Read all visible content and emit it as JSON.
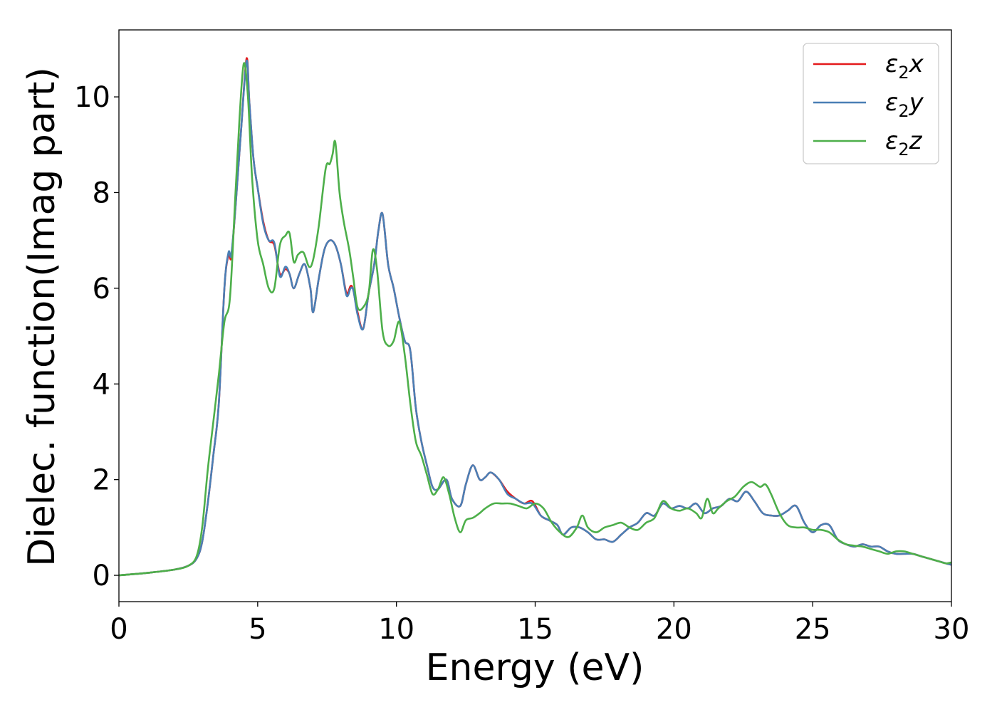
{
  "chart_data": {
    "type": "line",
    "xlabel": "Energy (eV)",
    "ylabel": "Dielec. function(Imag part)",
    "xlim": [
      0,
      30
    ],
    "ylim": [
      -0.55,
      11.4
    ],
    "xticks": [
      0,
      5,
      10,
      15,
      20,
      25,
      30
    ],
    "yticks": [
      0,
      2,
      4,
      6,
      8,
      10
    ],
    "grid": false,
    "legend_position": "top-right",
    "series": [
      {
        "name": "ε2x",
        "legend_main": "ε",
        "legend_sub": "2",
        "legend_suffix": "x",
        "color": "#e41a1c",
        "x": [
          0,
          1,
          2,
          2.5,
          2.8,
          3.0,
          3.2,
          3.4,
          3.6,
          3.8,
          3.95,
          4.05,
          4.2,
          4.4,
          4.6,
          4.7,
          4.85,
          5.0,
          5.2,
          5.4,
          5.6,
          5.8,
          6.0,
          6.15,
          6.3,
          6.5,
          6.7,
          6.9,
          7.0,
          7.2,
          7.4,
          7.6,
          7.8,
          8.0,
          8.2,
          8.35,
          8.45,
          8.6,
          8.8,
          9.0,
          9.2,
          9.35,
          9.5,
          9.7,
          9.9,
          10.1,
          10.3,
          10.5,
          10.7,
          10.9,
          11.1,
          11.3,
          11.5,
          11.8,
          12.0,
          12.3,
          12.5,
          12.75,
          13.0,
          13.2,
          13.4,
          13.7,
          14.0,
          14.3,
          14.6,
          14.9,
          15.2,
          15.5,
          15.8,
          16.0,
          16.3,
          16.6,
          16.9,
          17.2,
          17.5,
          17.8,
          18.1,
          18.4,
          18.7,
          19.0,
          19.3,
          19.6,
          19.9,
          20.2,
          20.5,
          20.8,
          21.1,
          21.4,
          21.7,
          22.0,
          22.3,
          22.6,
          22.9,
          23.2,
          23.5,
          23.8,
          24.1,
          24.4,
          24.7,
          25.0,
          25.3,
          25.6,
          25.9,
          26.2,
          26.5,
          26.8,
          27.1,
          27.4,
          27.7,
          28.0,
          28.3,
          28.6,
          28.9,
          29.2,
          29.5,
          29.8,
          30.0
        ],
        "y": [
          0.0,
          0.05,
          0.12,
          0.2,
          0.35,
          0.7,
          1.5,
          2.5,
          3.6,
          6.0,
          6.7,
          6.65,
          7.7,
          9.3,
          10.8,
          9.9,
          8.7,
          8.1,
          7.4,
          7.0,
          6.9,
          6.3,
          6.4,
          6.3,
          6.0,
          6.3,
          6.5,
          6.0,
          5.5,
          6.2,
          6.8,
          7.0,
          6.9,
          6.5,
          5.9,
          6.05,
          5.95,
          5.5,
          5.15,
          5.9,
          6.5,
          7.2,
          7.55,
          6.5,
          6.0,
          5.4,
          4.9,
          4.7,
          3.5,
          2.8,
          2.3,
          1.85,
          1.8,
          2.0,
          1.6,
          1.45,
          1.9,
          2.3,
          2.0,
          2.05,
          2.15,
          2.0,
          1.75,
          1.6,
          1.5,
          1.55,
          1.25,
          1.15,
          1.05,
          0.85,
          1.0,
          1.0,
          0.9,
          0.75,
          0.75,
          0.7,
          0.85,
          1.0,
          1.1,
          1.3,
          1.25,
          1.5,
          1.4,
          1.45,
          1.4,
          1.5,
          1.3,
          1.4,
          1.45,
          1.6,
          1.55,
          1.75,
          1.55,
          1.3,
          1.25,
          1.25,
          1.35,
          1.45,
          1.1,
          0.9,
          1.05,
          1.05,
          0.75,
          0.65,
          0.6,
          0.65,
          0.6,
          0.6,
          0.5,
          0.45,
          0.45,
          0.45,
          0.4,
          0.35,
          0.3,
          0.25,
          0.22
        ]
      },
      {
        "name": "ε2y",
        "legend_main": "ε",
        "legend_sub": "2",
        "legend_suffix": "y",
        "color": "#4a7fb5",
        "x": [
          0,
          1,
          2,
          2.5,
          2.8,
          3.0,
          3.2,
          3.4,
          3.6,
          3.8,
          3.95,
          4.05,
          4.2,
          4.4,
          4.6,
          4.7,
          4.85,
          5.0,
          5.2,
          5.4,
          5.6,
          5.8,
          6.0,
          6.15,
          6.3,
          6.5,
          6.7,
          6.9,
          7.0,
          7.2,
          7.4,
          7.6,
          7.8,
          8.0,
          8.2,
          8.35,
          8.45,
          8.6,
          8.8,
          9.0,
          9.2,
          9.35,
          9.5,
          9.7,
          9.9,
          10.1,
          10.3,
          10.5,
          10.7,
          10.9,
          11.1,
          11.3,
          11.5,
          11.8,
          12.0,
          12.3,
          12.5,
          12.75,
          13.0,
          13.2,
          13.4,
          13.7,
          14.0,
          14.3,
          14.6,
          14.9,
          15.2,
          15.5,
          15.8,
          16.0,
          16.3,
          16.6,
          16.9,
          17.2,
          17.5,
          17.8,
          18.1,
          18.4,
          18.7,
          19.0,
          19.3,
          19.6,
          19.9,
          20.2,
          20.5,
          20.8,
          21.1,
          21.4,
          21.7,
          22.0,
          22.3,
          22.6,
          22.9,
          23.2,
          23.5,
          23.8,
          24.1,
          24.4,
          24.7,
          25.0,
          25.3,
          25.6,
          25.9,
          26.2,
          26.5,
          26.8,
          27.1,
          27.4,
          27.7,
          28.0,
          28.3,
          28.6,
          28.9,
          29.2,
          29.5,
          29.8,
          30.0
        ],
        "y": [
          0.0,
          0.05,
          0.12,
          0.2,
          0.35,
          0.7,
          1.5,
          2.5,
          3.6,
          6.0,
          6.75,
          6.7,
          7.7,
          9.3,
          10.75,
          9.9,
          8.7,
          8.1,
          7.35,
          7.0,
          6.95,
          6.25,
          6.45,
          6.3,
          6.0,
          6.3,
          6.5,
          6.0,
          5.5,
          6.2,
          6.8,
          7.0,
          6.9,
          6.5,
          5.85,
          6.0,
          5.95,
          5.45,
          5.15,
          5.9,
          6.5,
          7.2,
          7.55,
          6.5,
          6.0,
          5.4,
          4.9,
          4.7,
          3.5,
          2.8,
          2.3,
          1.85,
          1.8,
          2.0,
          1.6,
          1.45,
          1.9,
          2.3,
          2.0,
          2.05,
          2.15,
          2.0,
          1.7,
          1.6,
          1.5,
          1.5,
          1.25,
          1.15,
          1.05,
          0.85,
          1.0,
          1.0,
          0.9,
          0.75,
          0.75,
          0.7,
          0.85,
          1.0,
          1.1,
          1.3,
          1.25,
          1.5,
          1.4,
          1.45,
          1.4,
          1.5,
          1.3,
          1.4,
          1.45,
          1.6,
          1.55,
          1.75,
          1.55,
          1.3,
          1.25,
          1.25,
          1.35,
          1.45,
          1.1,
          0.9,
          1.05,
          1.05,
          0.75,
          0.65,
          0.6,
          0.65,
          0.6,
          0.6,
          0.5,
          0.45,
          0.45,
          0.45,
          0.4,
          0.35,
          0.3,
          0.25,
          0.22
        ]
      },
      {
        "name": "ε2z",
        "legend_main": "ε",
        "legend_sub": "2",
        "legend_suffix": "z",
        "color": "#4daf4a",
        "x": [
          0,
          1,
          2,
          2.5,
          2.8,
          3.0,
          3.2,
          3.4,
          3.6,
          3.8,
          4.0,
          4.2,
          4.35,
          4.5,
          4.65,
          4.8,
          5.0,
          5.2,
          5.4,
          5.6,
          5.8,
          6.0,
          6.15,
          6.3,
          6.45,
          6.65,
          6.85,
          7.0,
          7.2,
          7.45,
          7.6,
          7.7,
          7.8,
          7.95,
          8.1,
          8.3,
          8.45,
          8.6,
          8.8,
          9.0,
          9.15,
          9.3,
          9.5,
          9.7,
          9.9,
          10.1,
          10.3,
          10.5,
          10.7,
          10.9,
          11.1,
          11.3,
          11.5,
          11.7,
          11.9,
          12.1,
          12.3,
          12.5,
          12.75,
          13.0,
          13.2,
          13.5,
          13.8,
          14.1,
          14.4,
          14.7,
          15.0,
          15.3,
          15.6,
          15.9,
          16.2,
          16.5,
          16.7,
          16.9,
          17.2,
          17.5,
          17.8,
          18.1,
          18.4,
          18.7,
          19.0,
          19.3,
          19.6,
          19.9,
          20.2,
          20.5,
          20.8,
          21.0,
          21.2,
          21.4,
          21.6,
          21.9,
          22.2,
          22.5,
          22.8,
          23.1,
          23.3,
          23.5,
          23.8,
          24.1,
          24.4,
          24.7,
          25.0,
          25.3,
          25.6,
          25.9,
          26.2,
          26.5,
          26.8,
          27.1,
          27.4,
          27.7,
          28.0,
          28.3,
          28.6,
          28.9,
          29.2,
          29.5,
          29.8,
          30.0
        ],
        "y": [
          0.0,
          0.05,
          0.12,
          0.2,
          0.4,
          1.0,
          2.2,
          3.2,
          4.2,
          5.3,
          5.8,
          8.0,
          9.6,
          10.7,
          10.0,
          8.3,
          7.0,
          6.5,
          6.0,
          6.0,
          6.9,
          7.1,
          7.15,
          6.55,
          6.7,
          6.75,
          6.45,
          6.6,
          7.3,
          8.5,
          8.6,
          8.8,
          9.05,
          8.0,
          7.4,
          6.8,
          6.2,
          5.6,
          5.6,
          5.9,
          6.8,
          6.4,
          5.1,
          4.8,
          4.9,
          5.3,
          4.6,
          3.6,
          2.8,
          2.5,
          2.1,
          1.7,
          1.8,
          2.05,
          1.7,
          1.2,
          0.9,
          1.15,
          1.2,
          1.3,
          1.4,
          1.5,
          1.5,
          1.5,
          1.45,
          1.4,
          1.5,
          1.4,
          1.1,
          0.9,
          0.8,
          1.0,
          1.25,
          1.0,
          0.9,
          1.0,
          1.05,
          1.1,
          1.0,
          0.95,
          1.1,
          1.2,
          1.55,
          1.4,
          1.35,
          1.4,
          1.3,
          1.2,
          1.6,
          1.3,
          1.4,
          1.55,
          1.65,
          1.85,
          1.95,
          1.85,
          1.9,
          1.7,
          1.3,
          1.05,
          1.0,
          1.0,
          0.95,
          0.95,
          0.9,
          0.75,
          0.65,
          0.62,
          0.6,
          0.55,
          0.5,
          0.45,
          0.5,
          0.5,
          0.45,
          0.4,
          0.35,
          0.3,
          0.25,
          0.27
        ]
      }
    ]
  }
}
